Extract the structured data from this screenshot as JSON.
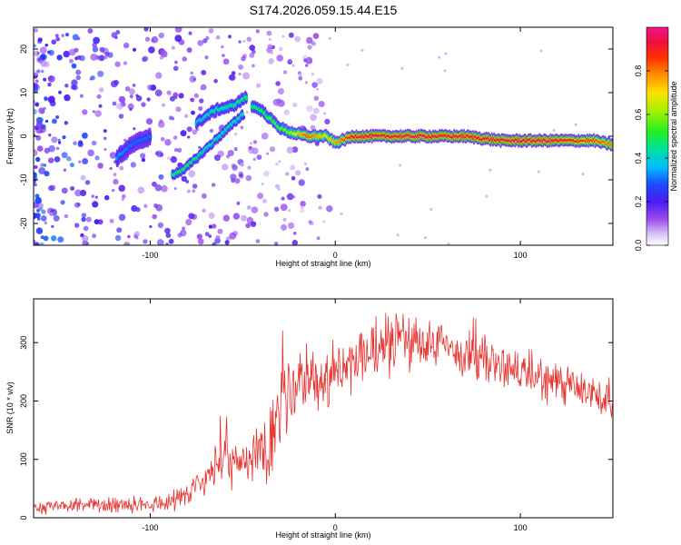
{
  "title": "S174.2026.059.15.44.E15",
  "colors": {
    "trace": "#e8322e",
    "frame": "#000000",
    "background": "#ffffff"
  },
  "chart_data": [
    {
      "type": "heatmap",
      "name": "spectrogram",
      "xlabel": "Height of straight line (km)",
      "ylabel": "Frequency (Hz)",
      "xlim": [
        -163,
        150
      ],
      "ylim": [
        -25,
        25
      ],
      "xticks": [
        -100,
        0,
        100
      ],
      "xtick_labels": [
        "-100",
        "0",
        "100"
      ],
      "yticks": [
        -20,
        -10,
        0,
        10,
        20
      ],
      "ytick_labels": [
        "-20",
        "-10",
        "0",
        "10",
        "20"
      ],
      "colorbar": {
        "label": "Normalized spectral amplitude",
        "range": [
          0,
          1
        ],
        "ticks": [
          0.0,
          0.2,
          0.4,
          0.6,
          0.8
        ],
        "tick_labels": [
          "0.0",
          "0.2",
          "0.4",
          "0.6",
          "0.8"
        ],
        "colormap": "rainbow (white-violet-blue-cyan-green-yellow-orange-red-magenta)"
      },
      "main_band": [
        {
          "x": -45,
          "f": 7,
          "a": 0.5
        },
        {
          "x": -40,
          "f": 6,
          "a": 0.5
        },
        {
          "x": -35,
          "f": 4,
          "a": 0.55
        },
        {
          "x": -30,
          "f": 2,
          "a": 0.55
        },
        {
          "x": -25,
          "f": 1,
          "a": 0.6
        },
        {
          "x": -15,
          "f": 0,
          "a": 0.85
        },
        {
          "x": -5,
          "f": 0,
          "a": 0.7
        },
        {
          "x": 0,
          "f": -1.5,
          "a": 0.75
        },
        {
          "x": 10,
          "f": 0,
          "a": 0.95
        },
        {
          "x": 40,
          "f": 0,
          "a": 0.95
        },
        {
          "x": 70,
          "f": 0,
          "a": 0.95
        },
        {
          "x": 90,
          "f": -1,
          "a": 0.95
        },
        {
          "x": 120,
          "f": -1,
          "a": 0.95
        },
        {
          "x": 140,
          "f": -1,
          "a": 0.85
        },
        {
          "x": 150,
          "f": -2,
          "a": 0.8
        }
      ],
      "lower_branch": [
        {
          "x": -88,
          "f": -9,
          "a": 0.5
        },
        {
          "x": -80,
          "f": -7,
          "a": 0.5
        },
        {
          "x": -70,
          "f": -3,
          "a": 0.45
        },
        {
          "x": -60,
          "f": 1,
          "a": 0.45
        },
        {
          "x": -50,
          "f": 5,
          "a": 0.45
        }
      ],
      "upper_branch": [
        {
          "x": -75,
          "f": 3,
          "a": 0.4
        },
        {
          "x": -65,
          "f": 6,
          "a": 0.45
        },
        {
          "x": -55,
          "f": 7,
          "a": 0.45
        },
        {
          "x": -48,
          "f": 9,
          "a": 0.5
        }
      ],
      "left_cluster": [
        {
          "x": -118,
          "f": -5,
          "a": 0.35
        },
        {
          "x": -110,
          "f": -2,
          "a": 0.3
        },
        {
          "x": -100,
          "f": 0,
          "a": 0.3
        }
      ]
    },
    {
      "type": "line",
      "name": "snr",
      "xlabel": "Height of straight line (km)",
      "ylabel": "SNR (10 * v/v)",
      "xlim": [
        -163,
        150
      ],
      "ylim": [
        0,
        375
      ],
      "xticks": [
        -100,
        0,
        100
      ],
      "xtick_labels": [
        "-100",
        "0",
        "100"
      ],
      "yticks": [
        0,
        100,
        200,
        300
      ],
      "ytick_labels": [
        "0",
        "100",
        "200",
        "300"
      ],
      "series": [
        {
          "name": "SNR",
          "color": "#e8322e",
          "x": [
            -163,
            -140,
            -120,
            -100,
            -90,
            -80,
            -70,
            -62,
            -55,
            -45,
            -35,
            -28,
            -20,
            -10,
            0,
            10,
            20,
            30,
            40,
            50,
            60,
            70,
            80,
            90,
            100,
            110,
            120,
            130,
            140,
            150
          ],
          "y": [
            18,
            20,
            22,
            25,
            28,
            40,
            70,
            95,
            90,
            110,
            140,
            190,
            220,
            240,
            245,
            265,
            285,
            300,
            305,
            300,
            290,
            280,
            270,
            260,
            250,
            240,
            230,
            220,
            210,
            205
          ],
          "spread": [
            12,
            12,
            14,
            15,
            18,
            25,
            30,
            40,
            40,
            50,
            70,
            70,
            60,
            60,
            55,
            55,
            55,
            55,
            55,
            50,
            45,
            45,
            45,
            40,
            40,
            40,
            40,
            40,
            40,
            40
          ]
        }
      ]
    }
  ]
}
